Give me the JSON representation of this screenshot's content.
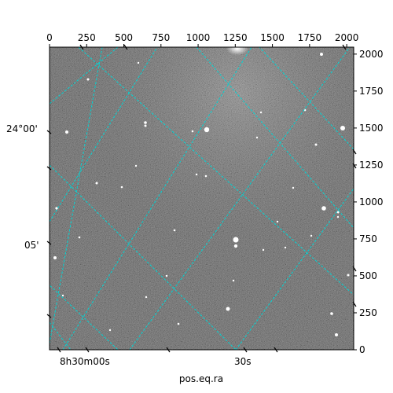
{
  "chart_data": {
    "type": "image",
    "title": "",
    "image_kind": "grayscale astronomical sky image with celestial coordinate grid overlay",
    "colormap": "gray",
    "pixel_axes": {
      "x_range": [
        0,
        2047
      ],
      "y_range": [
        0,
        2047
      ],
      "top_ticks": [
        0,
        250,
        500,
        750,
        1000,
        1250,
        1500,
        1750,
        2000
      ],
      "top_tick_labels": [
        "0",
        "250",
        "500",
        "750",
        "1000",
        "1250",
        "1500",
        "1750",
        "2000"
      ],
      "right_ticks": [
        0,
        250,
        500,
        750,
        1000,
        1250,
        1500,
        1750,
        2000
      ],
      "right_tick_labels": [
        "0",
        "250",
        "500",
        "750",
        "1000",
        "1250",
        "1500",
        "1750",
        "2000"
      ]
    },
    "world_axes": {
      "xlabel": "pos.eq.ra",
      "ylabel": "",
      "ra_tick_labels": [
        "8h30m00s",
        "30s"
      ],
      "dec_tick_labels": [
        "24°00'",
        "05'"
      ]
    },
    "grid": {
      "on": true,
      "color": "#00d5d5",
      "style": "dashed"
    }
  }
}
